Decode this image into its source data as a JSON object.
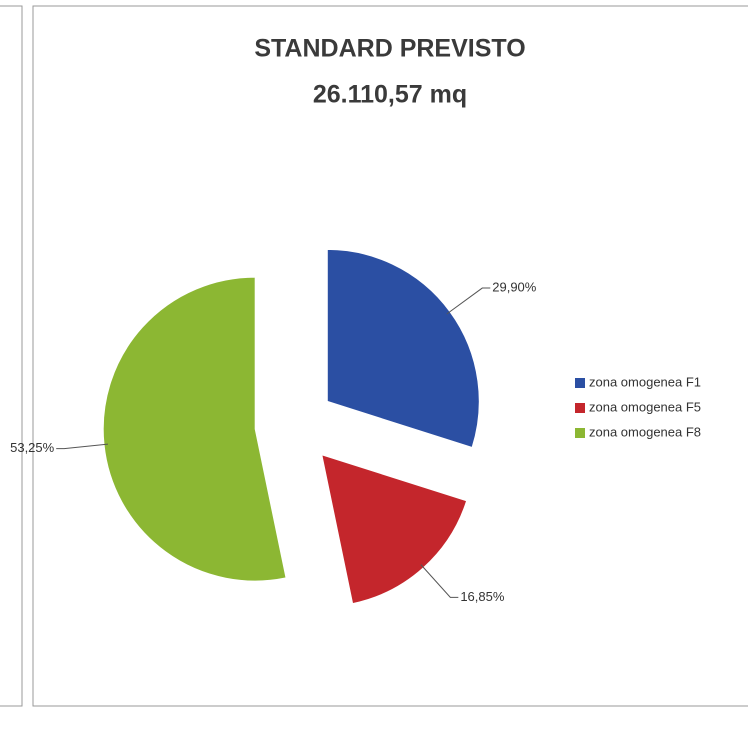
{
  "chart_data": {
    "type": "pie",
    "title": "STANDARD PREVISTO",
    "subtitle": "26.110,57 mq",
    "categories": [
      "zona omogenea F1",
      "zona omogenea F5",
      "zona omogenea F8"
    ],
    "values": [
      29.9,
      16.85,
      53.25
    ],
    "value_labels": [
      "29,90%",
      "16,85%",
      "53,25%"
    ],
    "colors": [
      "#2b4fa3",
      "#c4262c",
      "#8cb733"
    ],
    "legend": "right"
  }
}
